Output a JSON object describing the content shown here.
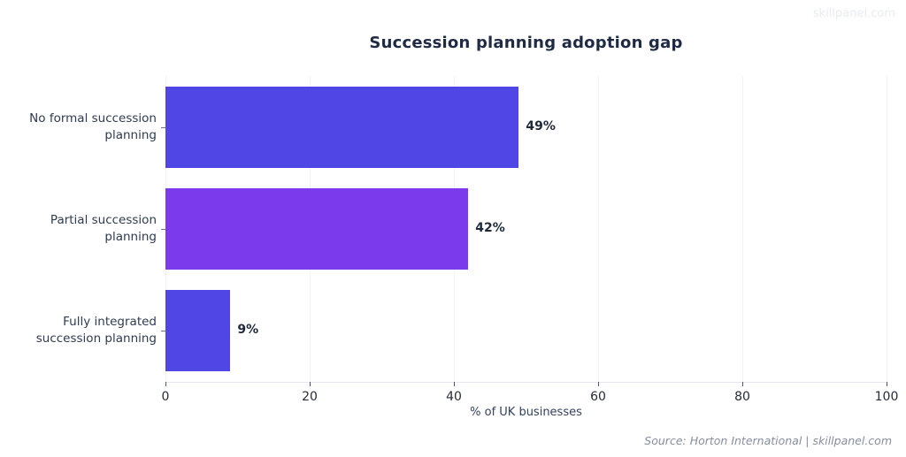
{
  "watermark": "skillpanel.com",
  "header": {
    "title": "Succession planning adoption gap"
  },
  "chart_data": {
    "type": "bar",
    "orientation": "horizontal",
    "title": "Succession planning adoption gap",
    "categories": [
      "No formal succession planning",
      "Partial succession planning",
      "Fully integrated succession planning"
    ],
    "values": [
      49,
      42,
      9
    ],
    "value_labels": [
      "49%",
      "42%",
      "9%"
    ],
    "bar_colors": [
      "#4f46e5",
      "#7c3aed",
      "#4f46e5"
    ],
    "xlabel": "% of UK businesses",
    "xlim": [
      0,
      100
    ],
    "xticks": [
      0,
      20,
      40,
      60,
      80,
      100
    ],
    "grid": true,
    "legend": false
  },
  "footer": {
    "source": "Source: Horton International | skillpanel.com"
  }
}
